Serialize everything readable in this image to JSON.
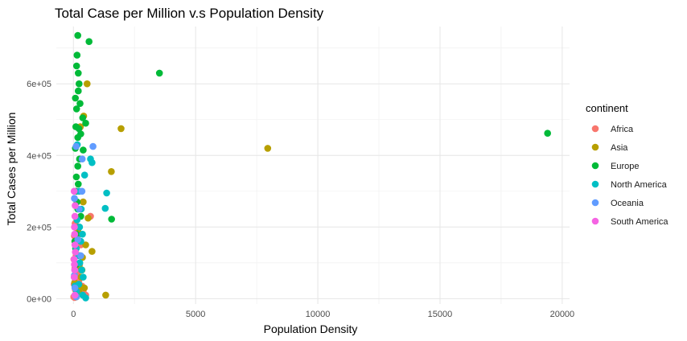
{
  "chart_data": {
    "type": "scatter",
    "title": "Total Case per Million v.s Population Density",
    "xlabel": "Population Density",
    "ylabel": "Total Cases per Million",
    "xlim": [
      -700,
      20300
    ],
    "ylim": [
      -15000,
      760000
    ],
    "x_ticks": [
      0,
      5000,
      10000,
      15000,
      20000
    ],
    "x_tick_labels": [
      "0",
      "5000",
      "10000",
      "15000",
      "20000"
    ],
    "y_ticks": [
      0,
      200000,
      400000,
      600000
    ],
    "y_tick_labels": [
      "0e+00",
      "2e+05",
      "4e+05",
      "6e+05"
    ],
    "grid": true,
    "legend": {
      "title": "continent",
      "position": "right"
    },
    "series": [
      {
        "name": "Africa",
        "color": "#F8766D",
        "points": [
          [
            50,
            3000
          ],
          [
            120,
            8000
          ],
          [
            200,
            15000
          ],
          [
            80,
            25000
          ],
          [
            30,
            40000
          ],
          [
            100,
            60000
          ],
          [
            150,
            70000
          ],
          [
            60,
            85000
          ],
          [
            250,
            95000
          ],
          [
            20,
            110000
          ],
          [
            90,
            130000
          ],
          [
            300,
            150000
          ],
          [
            40,
            175000
          ],
          [
            180,
            190000
          ],
          [
            70,
            210000
          ],
          [
            700,
            230000
          ],
          [
            130,
            300000
          ],
          [
            270,
            478000
          ],
          [
            500,
            10000
          ],
          [
            350,
            35000
          ],
          [
            110,
            120000
          ],
          [
            15,
            5000
          ],
          [
            400,
            20000
          ],
          [
            220,
            50000
          ],
          [
            60,
            160000
          ]
        ]
      },
      {
        "name": "Asia",
        "color": "#B79F00",
        "points": [
          [
            1320,
            10000
          ],
          [
            450,
            30000
          ],
          [
            260,
            35000
          ],
          [
            320,
            60000
          ],
          [
            230,
            90000
          ],
          [
            270,
            120000
          ],
          [
            760,
            132000
          ],
          [
            370,
            115000
          ],
          [
            180,
            190000
          ],
          [
            600,
            225000
          ],
          [
            1550,
            355000
          ],
          [
            1950,
            475000
          ],
          [
            7950,
            420000
          ],
          [
            560,
            600000
          ],
          [
            420,
            510000
          ],
          [
            280,
            480000
          ],
          [
            400,
            270000
          ],
          [
            150,
            170000
          ],
          [
            350,
            80000
          ],
          [
            50,
            45000
          ],
          [
            230,
            18000
          ],
          [
            120,
            5000
          ],
          [
            500,
            150000
          ]
        ]
      },
      {
        "name": "Europe",
        "color": "#00BA38",
        "points": [
          [
            180,
            735000
          ],
          [
            640,
            718000
          ],
          [
            150,
            680000
          ],
          [
            3520,
            630000
          ],
          [
            130,
            650000
          ],
          [
            200,
            630000
          ],
          [
            230,
            600000
          ],
          [
            80,
            560000
          ],
          [
            200,
            580000
          ],
          [
            270,
            545000
          ],
          [
            130,
            530000
          ],
          [
            380,
            505000
          ],
          [
            500,
            490000
          ],
          [
            100,
            480000
          ],
          [
            220,
            475000
          ],
          [
            300,
            460000
          ],
          [
            180,
            450000
          ],
          [
            400,
            415000
          ],
          [
            250,
            390000
          ],
          [
            180,
            370000
          ],
          [
            120,
            340000
          ],
          [
            200,
            320000
          ],
          [
            100,
            300000
          ],
          [
            150,
            270000
          ],
          [
            1560,
            222000
          ],
          [
            220,
            200000
          ],
          [
            120,
            180000
          ],
          [
            60,
            160000
          ],
          [
            90,
            140000
          ],
          [
            110,
            95000
          ],
          [
            19400,
            462000
          ],
          [
            80,
            420000
          ],
          [
            180,
            250000
          ],
          [
            300,
            230000
          ]
        ]
      },
      {
        "name": "North America",
        "color": "#00BFC4",
        "points": [
          [
            160,
            430000
          ],
          [
            700,
            390000
          ],
          [
            760,
            380000
          ],
          [
            1360,
            295000
          ],
          [
            1300,
            252000
          ],
          [
            460,
            345000
          ],
          [
            230,
            300000
          ],
          [
            320,
            250000
          ],
          [
            150,
            220000
          ],
          [
            250,
            200000
          ],
          [
            370,
            180000
          ],
          [
            300,
            160000
          ],
          [
            120,
            140000
          ],
          [
            200,
            120000
          ],
          [
            260,
            100000
          ],
          [
            340,
            80000
          ],
          [
            400,
            60000
          ],
          [
            220,
            40000
          ],
          [
            130,
            20000
          ],
          [
            380,
            10000
          ],
          [
            60,
            35000
          ],
          [
            500,
            2000
          ]
        ]
      },
      {
        "name": "Oceania",
        "color": "#619CFF",
        "points": [
          [
            110,
            425000
          ],
          [
            800,
            425000
          ],
          [
            360,
            390000
          ],
          [
            350,
            300000
          ],
          [
            40,
            280000
          ],
          [
            230,
            250000
          ],
          [
            180,
            165000
          ],
          [
            40,
            65000
          ],
          [
            60,
            30000
          ],
          [
            300,
            120000
          ],
          [
            120,
            5000
          ]
        ]
      },
      {
        "name": "South America",
        "color": "#F564E3",
        "points": [
          [
            30,
            300000
          ],
          [
            70,
            260000
          ],
          [
            60,
            230000
          ],
          [
            40,
            200000
          ],
          [
            50,
            180000
          ],
          [
            60,
            150000
          ],
          [
            80,
            130000
          ],
          [
            30,
            110000
          ],
          [
            40,
            95000
          ],
          [
            50,
            80000
          ],
          [
            30,
            60000
          ],
          [
            60,
            10000
          ]
        ]
      }
    ]
  }
}
